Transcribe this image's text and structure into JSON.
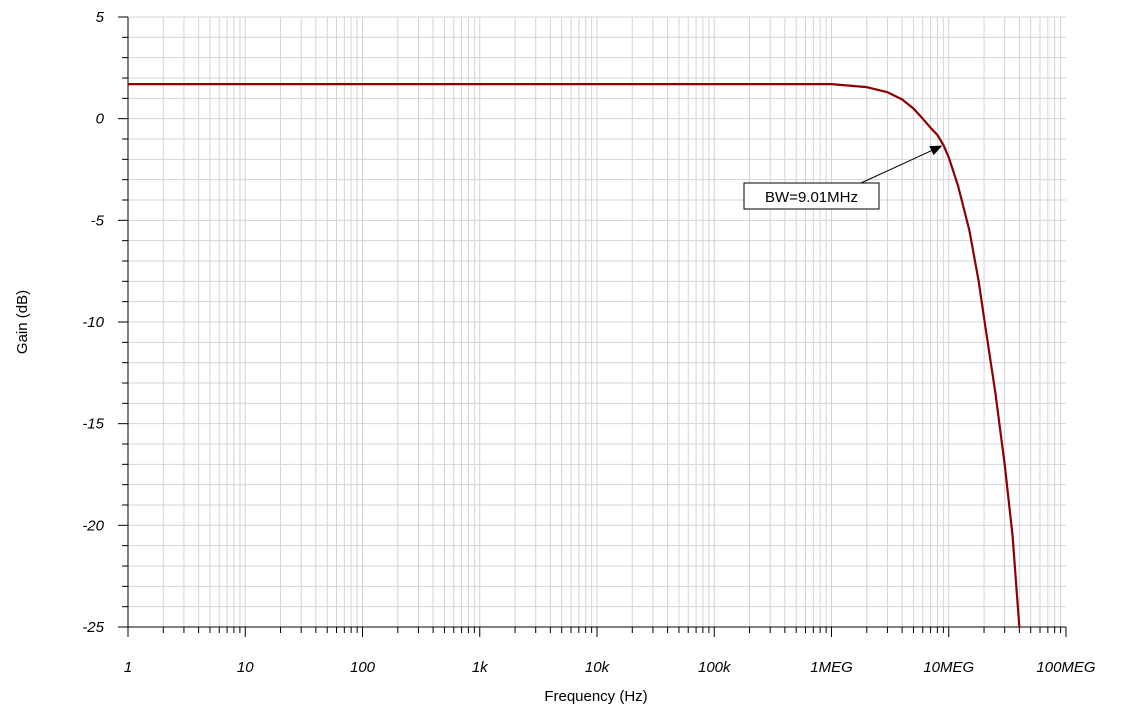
{
  "chart_data": {
    "type": "line",
    "title": "",
    "xlabel": "Frequency (Hz)",
    "ylabel": "Gain (dB)",
    "x_scale": "log",
    "xlim": [
      1,
      100000000
    ],
    "ylim": [
      -25,
      5
    ],
    "grid": true,
    "x_ticks": [
      {
        "value": 1,
        "label": "1"
      },
      {
        "value": 10,
        "label": "10"
      },
      {
        "value": 100,
        "label": "100"
      },
      {
        "value": 1000,
        "label": "1k"
      },
      {
        "value": 10000,
        "label": "10k"
      },
      {
        "value": 100000,
        "label": "100k"
      },
      {
        "value": 1000000,
        "label": "1MEG"
      },
      {
        "value": 10000000,
        "label": "10MEG"
      },
      {
        "value": 100000000,
        "label": "100MEG"
      }
    ],
    "y_ticks": [
      {
        "value": 5,
        "label": "5"
      },
      {
        "value": 0,
        "label": "0"
      },
      {
        "value": -5,
        "label": "-5"
      },
      {
        "value": -10,
        "label": "-10"
      },
      {
        "value": -15,
        "label": "-15"
      },
      {
        "value": -20,
        "label": "-20"
      },
      {
        "value": -25,
        "label": "-25"
      }
    ],
    "series": [
      {
        "color": "#8b0000",
        "x": [
          1,
          10,
          100,
          1000,
          10000,
          100000,
          1000000,
          2000000,
          3000000,
          4000000,
          5000000,
          6000000,
          7000000,
          8000000,
          9010000,
          10000000,
          12000000,
          15000000,
          18000000,
          20000000,
          25000000,
          30000000,
          35000000,
          40000000
        ],
        "y": [
          1.7,
          1.7,
          1.7,
          1.7,
          1.7,
          1.7,
          1.7,
          1.55,
          1.3,
          0.95,
          0.5,
          0.0,
          -0.45,
          -0.8,
          -1.3,
          -1.9,
          -3.3,
          -5.5,
          -8.0,
          -9.8,
          -13.5,
          -17.0,
          -20.5,
          -25.0
        ]
      }
    ],
    "annotations": [
      {
        "text": "BW=9.01MHz",
        "target_x": 9010000,
        "target_y": -1.3
      }
    ]
  }
}
